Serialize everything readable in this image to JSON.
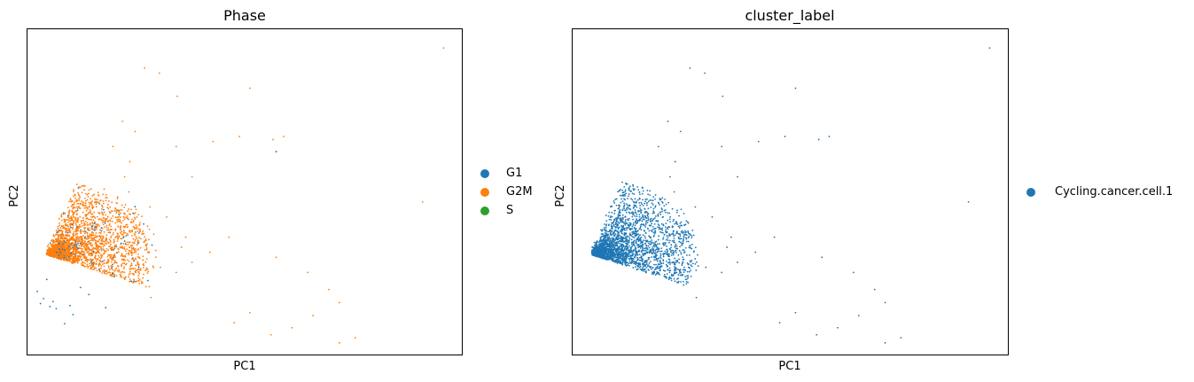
{
  "chart_data": [
    {
      "type": "scatter",
      "title": "Phase",
      "xlabel": "PC1",
      "ylabel": "PC2",
      "grid": false,
      "ticks": false,
      "legend_placement": "right-outside",
      "series": [
        {
          "name": "G1",
          "color": "#1f77b4",
          "x": [
            0.9,
            1.8,
            3.4,
            5.2,
            2.1,
            0.6,
            4.4,
            1.2,
            2.9,
            3.7,
            0.3,
            6.8,
            23.0,
            1.5
          ],
          "y": [
            4.9,
            4.6,
            4.2,
            5.3,
            3.9,
            4.4,
            6.0,
            6.8,
            2.4,
            3.3,
            5.6,
            4.0,
            19.5,
            4.1
          ]
        },
        {
          "name": "G2M",
          "color": "#ff7f0e",
          "x": [
            38.9,
            10.5,
            11.9,
            20.5,
            13.6,
            22.7,
            23.7,
            36.9,
            17.0,
            19.5,
            15.0,
            29.0,
            18.5,
            14.0,
            23.0,
            26.0,
            30.5,
            22.5,
            26.5,
            24.5,
            28.0,
            13.5,
            9.6,
            8.4,
            7.5,
            9.1,
            8.6,
            9.0,
            11.0,
            12.6,
            14.4,
            16.7,
            15.0,
            12.0,
            13.5,
            10.3,
            11.1,
            20.5,
            19.0,
            29.0
          ],
          "y": [
            29.8,
            27.8,
            27.3,
            25.8,
            25.0,
            20.7,
            21.0,
            14.5,
            20.5,
            21.0,
            17.0,
            4.5,
            11.0,
            10.0,
            9.0,
            7.5,
            1.0,
            1.3,
            3.2,
            2.0,
            5.8,
            20.0,
            21.5,
            22.5,
            20.0,
            18.5,
            17.0,
            15.5,
            14.0,
            13.0,
            11.0,
            9.5,
            8.5,
            8.0,
            7.5,
            6.5,
            5.0,
            3.5,
            2.5,
            0.5
          ]
        },
        {
          "name": "S",
          "color": "#2ca02c",
          "x": [],
          "y": []
        }
      ]
    },
    {
      "type": "scatter",
      "title": "cluster_label",
      "xlabel": "PC1",
      "ylabel": "PC2",
      "grid": false,
      "ticks": false,
      "legend_placement": "right-outside",
      "series": [
        {
          "name": "Cycling.cancer.cell.1",
          "color": "#1f77b4",
          "x": [
            38.9,
            10.5,
            11.9,
            20.5,
            13.6,
            22.7,
            23.7,
            36.9,
            17.0,
            19.5,
            15.0,
            29.0,
            18.5,
            14.0,
            23.0,
            26.0,
            30.5,
            22.5,
            26.5,
            24.5,
            28.0,
            13.5,
            9.6,
            8.4,
            7.5,
            9.1,
            8.6,
            9.0,
            11.0,
            12.6,
            14.4,
            16.7,
            15.0,
            12.0,
            13.5,
            10.3,
            11.1,
            20.5,
            19.0,
            29.0
          ],
          "y": [
            29.8,
            27.8,
            27.3,
            25.8,
            25.0,
            20.7,
            21.0,
            14.5,
            20.5,
            21.0,
            17.0,
            4.5,
            11.0,
            10.0,
            9.0,
            7.5,
            1.0,
            1.3,
            3.2,
            2.0,
            5.8,
            20.0,
            21.5,
            22.5,
            20.0,
            18.5,
            17.0,
            15.5,
            14.0,
            13.0,
            11.0,
            9.5,
            8.5,
            8.0,
            7.5,
            6.5,
            5.0,
            3.5,
            2.5,
            0.5
          ]
        }
      ]
    }
  ]
}
